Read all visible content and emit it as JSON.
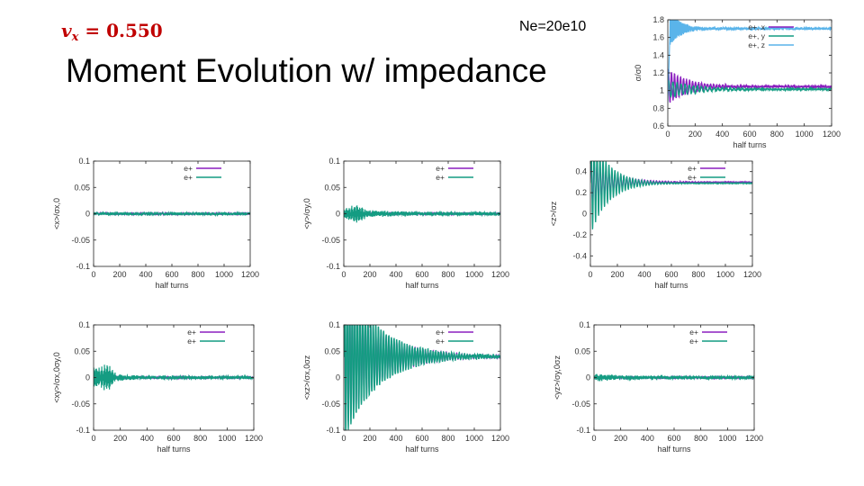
{
  "header": {
    "vx_symbol": "v",
    "vx_subscript": "x",
    "vx_value": " = 0.550",
    "ne_label": "Ne=20e10",
    "title": "Moment Evolution w/ impedance"
  },
  "colors": {
    "purple": "#8b1fbf",
    "green": "#149c82",
    "light_blue": "#5ab4ea",
    "vx_red": "#c00000",
    "axis": "#222222"
  },
  "chart_data": [
    {
      "id": "sigma",
      "type": "line",
      "xlabel": "half turns",
      "ylabel": "σ/σ0",
      "xlim": [
        0,
        1200
      ],
      "ylim": [
        0.6,
        1.8
      ],
      "xticks": [
        0,
        200,
        400,
        600,
        800,
        1000,
        1200
      ],
      "yticks": [
        0.6,
        0.8,
        1,
        1.2,
        1.4,
        1.6,
        1.8
      ],
      "ytick_labels": [
        "0.6",
        "0.8",
        "1",
        "1.2",
        "1.4",
        "1.6",
        "1.8"
      ],
      "legend": [
        "e+, x",
        "e+, y",
        "e+, z"
      ],
      "series": [
        {
          "name": "e+, x",
          "color": "purple",
          "base": 1.045,
          "amp": 0.2,
          "decay": 150,
          "period": 22,
          "noise": 0.012,
          "width": 1.3
        },
        {
          "name": "e+, y",
          "color": "green",
          "base": 1.015,
          "amp": 0.1,
          "decay": 200,
          "period": 30,
          "noise": 0.01,
          "width": 1.3
        },
        {
          "name": "e+, z",
          "color": "light_blue",
          "base": 1.7,
          "amp": 0.25,
          "decay": 80,
          "period": 4,
          "noise": 0.015,
          "width": 1.1,
          "dip": true
        }
      ]
    },
    {
      "id": "x_moment",
      "type": "line",
      "xlabel": "half turns",
      "ylabel": "<x>/σx,0",
      "xlim": [
        0,
        1200
      ],
      "ylim": [
        -0.1,
        0.1
      ],
      "xticks": [
        0,
        200,
        400,
        600,
        800,
        1000,
        1200
      ],
      "yticks": [
        -0.1,
        -0.05,
        0,
        0.05,
        0.1
      ],
      "ytick_labels": [
        "-0.1",
        "-0.05",
        "0",
        "0.05",
        "0.1"
      ],
      "legend": [
        "e+",
        "e+"
      ],
      "series": [
        {
          "name": "e+",
          "color": "purple",
          "base": 0,
          "amp": 0.0,
          "decay": 100,
          "period": 6,
          "noise": 0.002,
          "width": 1.0
        },
        {
          "name": "e+",
          "color": "green",
          "base": 0,
          "amp": 0.0,
          "decay": 100,
          "period": 6,
          "noise": 0.003,
          "width": 1.0
        }
      ]
    },
    {
      "id": "y_moment",
      "type": "line",
      "xlabel": "half turns",
      "ylabel": "<y>/σy,0",
      "xlim": [
        0,
        1200
      ],
      "ylim": [
        -0.1,
        0.1
      ],
      "xticks": [
        0,
        200,
        400,
        600,
        800,
        1000,
        1200
      ],
      "yticks": [
        -0.1,
        -0.05,
        0,
        0.05,
        0.1
      ],
      "ytick_labels": [
        "-0.1",
        "-0.05",
        "0",
        "0.05",
        "0.1"
      ],
      "legend": [
        "e+",
        "e+"
      ],
      "series": [
        {
          "name": "e+",
          "color": "purple",
          "base": 0,
          "amp": 0.0,
          "decay": 100,
          "period": 6,
          "noise": 0.002,
          "width": 1.0
        },
        {
          "name": "e+",
          "color": "green",
          "base": 0,
          "amp": 0.008,
          "decay": 300,
          "period": 5,
          "noise": 0.003,
          "width": 1.2,
          "hump": 0.012
        }
      ]
    },
    {
      "id": "z_moment",
      "type": "line",
      "xlabel": "half turns",
      "ylabel": "<z>/σz",
      "xlim": [
        0,
        1200
      ],
      "ylim": [
        -0.5,
        0.5
      ],
      "xticks": [
        0,
        200,
        400,
        600,
        800,
        1000,
        1200
      ],
      "yticks": [
        -0.4,
        -0.2,
        0,
        0.2,
        0.4
      ],
      "ytick_labels": [
        "-0.4",
        "-0.2",
        "0",
        "0.2",
        "0.4"
      ],
      "legend": [
        "e+",
        "e+"
      ],
      "series": [
        {
          "name": "e+",
          "color": "purple",
          "base": 0.3,
          "amp": 0.25,
          "decay": 160,
          "period": 22,
          "noise": 0.003,
          "width": 1.2
        },
        {
          "name": "e+",
          "color": "green",
          "base": 0.29,
          "amp": 0.5,
          "decay": 130,
          "period": 22,
          "noise": 0.003,
          "width": 1.2
        }
      ]
    },
    {
      "id": "xy_moment",
      "type": "line",
      "xlabel": "half turns",
      "ylabel": "<xy>/σx,0σy,0",
      "xlim": [
        0,
        1200
      ],
      "ylim": [
        -0.1,
        0.1
      ],
      "xticks": [
        0,
        200,
        400,
        600,
        800,
        1000,
        1200
      ],
      "yticks": [
        -0.1,
        -0.05,
        0,
        0.05,
        0.1
      ],
      "ytick_labels": [
        "-0.1",
        "-0.05",
        "0",
        "0.05",
        "0.1"
      ],
      "legend": [
        "e+",
        "e+"
      ],
      "series": [
        {
          "name": "e+",
          "color": "purple",
          "base": 0,
          "amp": 0.0,
          "decay": 100,
          "period": 6,
          "noise": 0.002,
          "width": 1.0
        },
        {
          "name": "e+",
          "color": "green",
          "base": 0,
          "amp": 0.018,
          "decay": 120,
          "period": 5,
          "noise": 0.003,
          "width": 1.2,
          "peak": 100
        }
      ]
    },
    {
      "id": "xz_moment",
      "type": "line",
      "xlabel": "half turns",
      "ylabel": "<xz>/σx,0σz",
      "xlim": [
        0,
        1200
      ],
      "ylim": [
        -0.1,
        0.1
      ],
      "xticks": [
        0,
        200,
        400,
        600,
        800,
        1000,
        1200
      ],
      "yticks": [
        -0.1,
        -0.05,
        0,
        0.05,
        0.1
      ],
      "ytick_labels": [
        "-0.1",
        "-0.05",
        "0",
        "0.05",
        "0.1"
      ],
      "legend": [
        "e+",
        "e+"
      ],
      "series": [
        {
          "name": "e+",
          "color": "purple",
          "base": 0.04,
          "amp": 0.14,
          "decay": 260,
          "period": 20,
          "noise": 0.002,
          "width": 1.2
        },
        {
          "name": "e+",
          "color": "green",
          "base": 0.04,
          "amp": 0.16,
          "decay": 250,
          "period": 20,
          "noise": 0.003,
          "width": 1.4
        }
      ]
    },
    {
      "id": "yz_moment",
      "type": "line",
      "xlabel": "half turns",
      "ylabel": "<yz>/σy,0σz",
      "xlim": [
        0,
        1200
      ],
      "ylim": [
        -0.1,
        0.1
      ],
      "xticks": [
        0,
        200,
        400,
        600,
        800,
        1000,
        1200
      ],
      "yticks": [
        -0.1,
        -0.05,
        0,
        0.05,
        0.1
      ],
      "ytick_labels": [
        "-0.1",
        "-0.05",
        "0",
        "0.05",
        "0.1"
      ],
      "legend": [
        "e+",
        "e+"
      ],
      "series": [
        {
          "name": "e+",
          "color": "purple",
          "base": 0,
          "amp": 0.0,
          "decay": 100,
          "period": 6,
          "noise": 0.002,
          "width": 1.0
        },
        {
          "name": "e+",
          "color": "green",
          "base": 0,
          "amp": 0.005,
          "decay": 200,
          "period": 5,
          "noise": 0.003,
          "width": 1.2
        }
      ]
    }
  ]
}
